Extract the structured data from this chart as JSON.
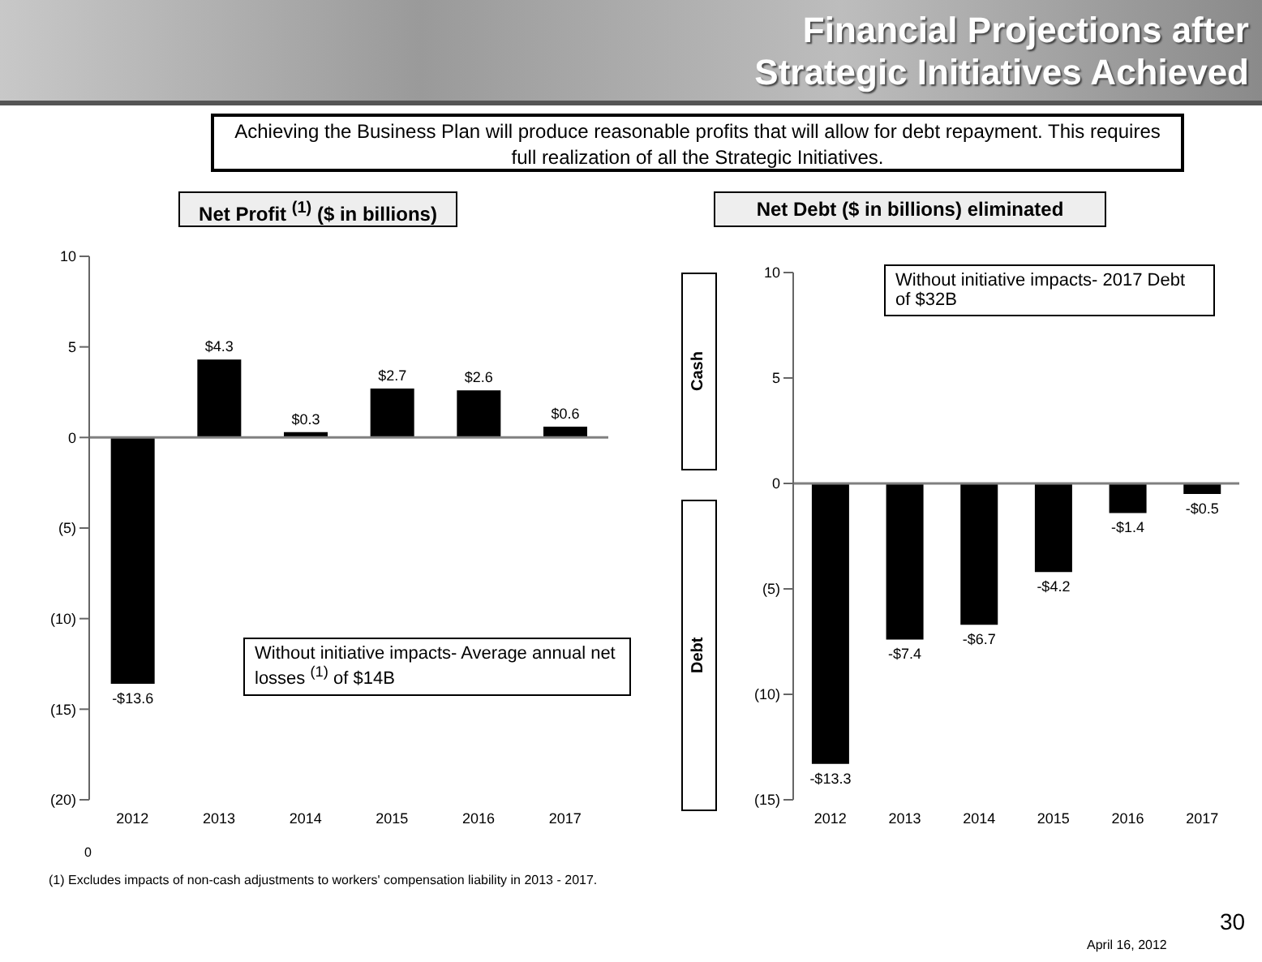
{
  "chart_data": [
    {
      "type": "bar",
      "title": "Net Profit $^{(1)}$ ($ in billions)",
      "categories": [
        "2012",
        "2013",
        "2014",
        "2015",
        "2016",
        "2017"
      ],
      "values": [
        -13.6,
        4.3,
        0.3,
        2.7,
        2.6,
        0.6
      ],
      "color": "#000000",
      "value_labels": [
        "-$13.6",
        "$4.3",
        "$0.3",
        "$2.7",
        "$2.6",
        "$0.6"
      ],
      "ylim": [
        -20,
        10
      ],
      "yticks": [
        10,
        5,
        0,
        {
          "value": -5,
          "label": "(5)"
        },
        {
          "value": -10,
          "label": "(10)"
        },
        {
          "value": -15,
          "label": "(15)"
        },
        {
          "value": -20,
          "label": "(20)"
        }
      ],
      "ref_lines": [
        {
          "axis": "y",
          "value": 0,
          "color": "#808080"
        }
      ],
      "grid": false,
      "legend": false,
      "annotations": [
        "Financial Projections after Strategic Initiatives Achieved",
        "Achieving the Business Plan will produce reasonable profits that will allow for debt repayment. This requires full realization of all the Strategic Initiatives.",
        "Without initiative impacts- Average annual net losses $^{(1)}$ of $14B",
        "0"
      ]
    },
    {
      "type": "bar",
      "title": "Net Debt ($ in billions) eliminated",
      "categories": [
        "2012",
        "2013",
        "2014",
        "2015",
        "2016",
        "2017"
      ],
      "values": [
        -13.3,
        -7.4,
        -6.7,
        -4.2,
        -1.4,
        -0.5
      ],
      "color": "#000000",
      "value_labels": [
        "-$13.3",
        "-$7.4",
        "-$6.7",
        "-$4.2",
        "-$1.4",
        "-$0.5"
      ],
      "ylim": [
        -15,
        10
      ],
      "yticks": [
        10,
        5,
        0,
        {
          "value": -5,
          "label": "(5)"
        },
        {
          "value": -10,
          "label": "(10)"
        },
        {
          "value": -15,
          "label": "(15)"
        }
      ],
      "ref_lines": [
        {
          "axis": "y",
          "value": 0,
          "color": "#808080"
        }
      ],
      "grid": false,
      "legend": false,
      "annotations": [
        "Without initiative impacts- 2017 Debt of $32B",
        "Cash",
        "Debt",
        "(1) Excludes impacts of non-cash adjustments to workers' compensation liability in 2013 - 2017.",
        "April 16, 2012",
        "30"
      ]
    }
  ]
}
